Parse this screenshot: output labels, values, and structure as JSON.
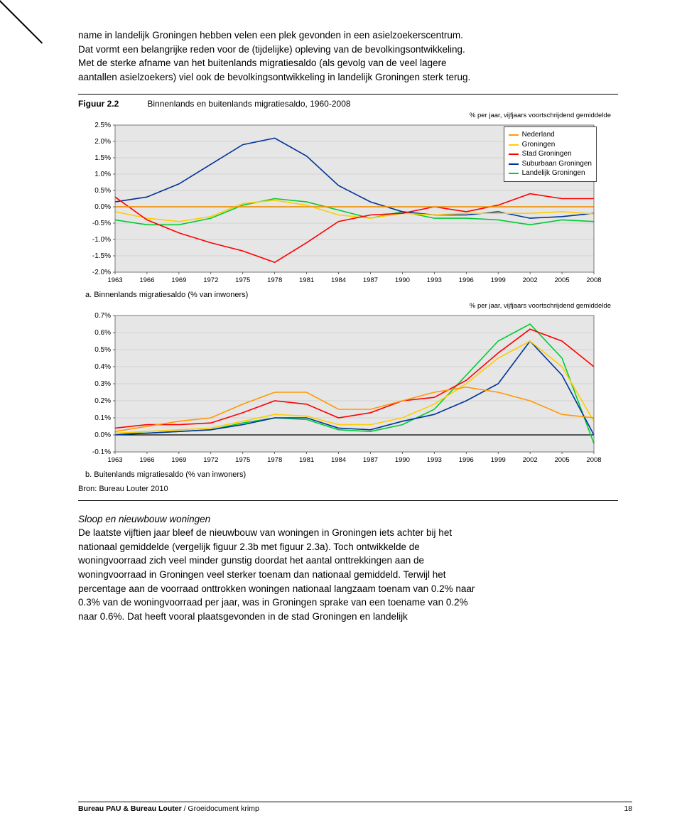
{
  "intro_para": "name in landelijk Groningen hebben velen een plek gevonden in een asielzoekerscentrum. Dat vormt een belangrijke reden voor de (tijdelijke) opleving van de bevolkingsontwikkeling. Met de sterke afname van het buitenlands migratiesaldo (als gevolg van de veel lagere aantallen asielzoekers) viel ook de bevolkingsontwikkeling in landelijk Groningen sterk terug.",
  "figure": {
    "id": "Figuur 2.2",
    "title": "Binnenlands en buitenlands migratiesaldo, 1960-2008",
    "note": "% per jaar, vijfjaars voortschrijdend gemiddelde",
    "caption_a": "a. Binnenlands migratiesaldo (% van inwoners)",
    "caption_b": "b. Buitenlands migratiesaldo (% van inwoners)",
    "source": "Bron: Bureau Louter 2010",
    "x_labels": [
      "1963",
      "1966",
      "1969",
      "1972",
      "1975",
      "1978",
      "1981",
      "1984",
      "1987",
      "1990",
      "1993",
      "1996",
      "1999",
      "2002",
      "2005",
      "2008"
    ],
    "legend": [
      {
        "label": "Nederland",
        "color": "#ff9900"
      },
      {
        "label": "Groningen",
        "color": "#ffcc00"
      },
      {
        "label": "Stad Groningen",
        "color": "#ff0000"
      },
      {
        "label": "Suburbaan Groningen",
        "color": "#003399"
      },
      {
        "label": "Landelijk Groningen",
        "color": "#00cc33"
      }
    ],
    "chart_a": {
      "ymin": -2.0,
      "ymax": 2.5,
      "ystep": 0.5,
      "y_labels": [
        "2.5%",
        "2.0%",
        "1.5%",
        "1.0%",
        "0.5%",
        "0.0%",
        "-0.5%",
        "-1.0%",
        "-1.5%",
        "-2.0%"
      ],
      "background": "#e6e6e6",
      "series": {
        "nederland": [
          0.0,
          0.0,
          0.0,
          0.0,
          0.0,
          0.0,
          0.0,
          0.0,
          0.0,
          0.0,
          0.0,
          0.0,
          0.0,
          0.0,
          0.0,
          0.0
        ],
        "groningen": [
          -0.15,
          -0.35,
          -0.45,
          -0.3,
          0.1,
          0.2,
          0.05,
          -0.25,
          -0.35,
          -0.2,
          -0.25,
          -0.2,
          -0.2,
          -0.2,
          -0.15,
          -0.22
        ],
        "stad": [
          0.3,
          -0.4,
          -0.8,
          -1.1,
          -1.35,
          -1.7,
          -1.1,
          -0.45,
          -0.25,
          -0.2,
          0.0,
          -0.15,
          0.05,
          0.4,
          0.25,
          0.25
        ],
        "suburbaan": [
          0.15,
          0.3,
          0.7,
          1.3,
          1.9,
          2.1,
          1.55,
          0.65,
          0.15,
          -0.15,
          -0.25,
          -0.25,
          -0.15,
          -0.35,
          -0.3,
          -0.2
        ],
        "landelijk": [
          -0.4,
          -0.55,
          -0.55,
          -0.35,
          0.05,
          0.25,
          0.15,
          -0.1,
          -0.35,
          -0.15,
          -0.35,
          -0.35,
          -0.4,
          -0.55,
          -0.4,
          -0.45
        ]
      }
    },
    "chart_b": {
      "ymin": -0.1,
      "ymax": 0.7,
      "ystep": 0.1,
      "y_labels": [
        "0.7%",
        "0.6%",
        "0.5%",
        "0.4%",
        "0.3%",
        "0.2%",
        "0.1%",
        "0.0%",
        "-0.1%"
      ],
      "background": "#e6e6e6",
      "series": {
        "nederland": [
          0.02,
          0.05,
          0.08,
          0.1,
          0.18,
          0.25,
          0.25,
          0.15,
          0.15,
          0.2,
          0.25,
          0.28,
          0.25,
          0.2,
          0.12,
          0.1
        ],
        "groningen": [
          0.01,
          0.02,
          0.03,
          0.04,
          0.08,
          0.12,
          0.11,
          0.06,
          0.06,
          0.1,
          0.18,
          0.3,
          0.45,
          0.55,
          0.4,
          0.08
        ],
        "stad": [
          0.04,
          0.06,
          0.06,
          0.07,
          0.13,
          0.2,
          0.18,
          0.1,
          0.13,
          0.2,
          0.22,
          0.32,
          0.48,
          0.62,
          0.55,
          0.4
        ],
        "suburbaan": [
          0.0,
          0.01,
          0.02,
          0.03,
          0.06,
          0.1,
          0.1,
          0.04,
          0.03,
          0.08,
          0.12,
          0.2,
          0.3,
          0.55,
          0.35,
          0.0
        ],
        "landelijk": [
          0.01,
          0.01,
          0.02,
          0.03,
          0.07,
          0.1,
          0.09,
          0.03,
          0.02,
          0.06,
          0.15,
          0.35,
          0.55,
          0.65,
          0.45,
          -0.05
        ]
      }
    }
  },
  "section_head": "Sloop en nieuwbouw woningen",
  "section_para": "De laatste vijftien jaar bleef de nieuwbouw van woningen in Groningen iets achter bij het nationaal gemiddelde (vergelijk figuur 2.3b met figuur 2.3a). Toch ontwikkelde de woningvoorraad zich veel minder gunstig doordat het aantal onttrekkingen aan de woningvoorraad in Groningen veel sterker toenam dan nationaal gemiddeld. Terwijl het percentage aan de voorraad onttrokken woningen nationaal langzaam toenam van 0.2% naar 0.3% van de woningvoorraad per jaar, was in Groningen sprake van een toename van 0.2% naar 0.6%. Dat heeft vooral plaatsgevonden in de stad Groningen en landelijk",
  "footer": {
    "left_bold": "Bureau PAU & Bureau Louter",
    "left_thin": " / Groeidocument krimp",
    "page": "18"
  }
}
